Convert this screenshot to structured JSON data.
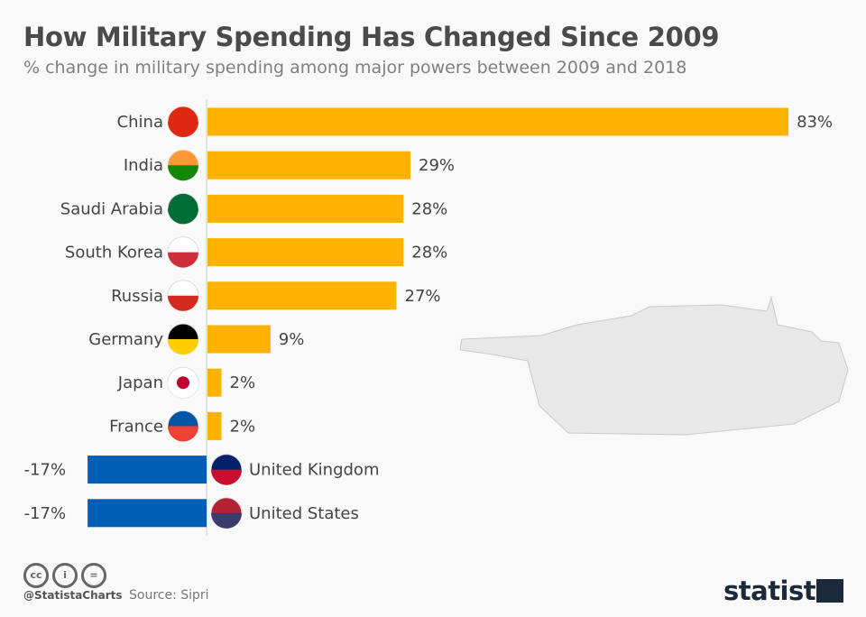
{
  "chart_data": {
    "type": "bar",
    "orientation": "horizontal",
    "title": "How Military Spending Has Changed Since 2009",
    "subtitle": "% change in military spending among major powers between 2009 and 2018",
    "categories": [
      "China",
      "India",
      "Saudi Arabia",
      "South Korea",
      "Russia",
      "Germany",
      "Japan",
      "France",
      "United Kingdom",
      "United States"
    ],
    "values": [
      83,
      29,
      28,
      28,
      27,
      9,
      2,
      2,
      -17,
      -17
    ],
    "value_labels": [
      "83%",
      "29%",
      "28%",
      "28%",
      "27%",
      "9%",
      "2%",
      "2%",
      "-17%",
      "-17%"
    ],
    "unit": "%",
    "colors": {
      "positive": "#ffb200",
      "negative": "#005eb4",
      "axis": "#cccccc"
    },
    "grid": false
  },
  "footer": {
    "handle": "@StatistaCharts",
    "source": "Source: Sipri",
    "logo": "statista",
    "license_icons": [
      "cc-icon",
      "by-icon",
      "nd-icon"
    ]
  }
}
